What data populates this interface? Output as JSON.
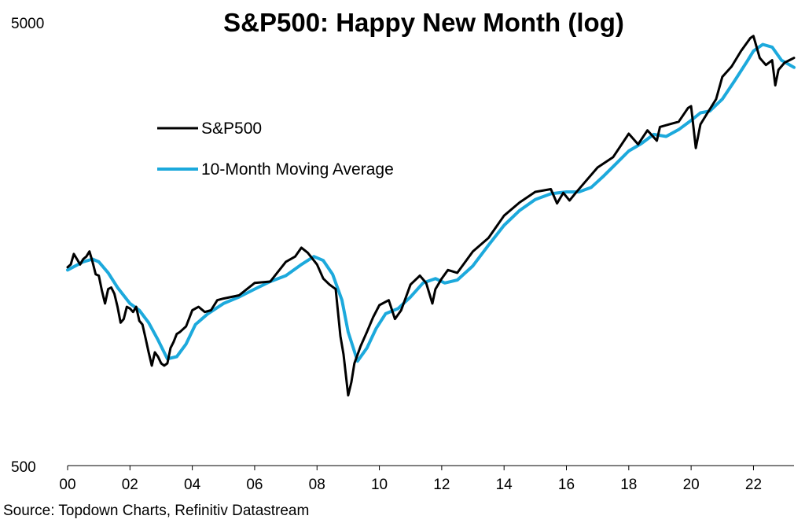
{
  "chart_data": {
    "type": "line",
    "title": "S&P500: Happy New Month (log)",
    "source": "Source: Topdown Charts, Refinitiv Datastream",
    "y_scale": "log",
    "ylim": [
      500,
      5000
    ],
    "y_tick_labels": [
      "5000",
      "500"
    ],
    "xlim": [
      2000.0,
      2023.3
    ],
    "x_ticks": [
      2000,
      2002,
      2004,
      2006,
      2008,
      2010,
      2012,
      2014,
      2016,
      2018,
      2020,
      2022
    ],
    "x_tick_labels": [
      "00",
      "02",
      "04",
      "06",
      "08",
      "10",
      "12",
      "14",
      "16",
      "18",
      "20",
      "22"
    ],
    "grid": false,
    "legend": {
      "position": "upper-left"
    },
    "series": [
      {
        "name": "S&P500",
        "color": "#000000",
        "x": [
          2000.0,
          2000.1,
          2000.2,
          2000.3,
          2000.4,
          2000.5,
          2000.6,
          2000.7,
          2000.8,
          2000.9,
          2001.0,
          2001.1,
          2001.2,
          2001.3,
          2001.4,
          2001.5,
          2001.6,
          2001.7,
          2001.8,
          2001.9,
          2002.0,
          2002.1,
          2002.2,
          2002.3,
          2002.4,
          2002.5,
          2002.6,
          2002.7,
          2002.8,
          2002.9,
          2003.0,
          2003.1,
          2003.2,
          2003.3,
          2003.4,
          2003.5,
          2003.6,
          2003.8,
          2004.0,
          2004.2,
          2004.4,
          2004.6,
          2004.8,
          2005.0,
          2005.5,
          2006.0,
          2006.5,
          2007.0,
          2007.3,
          2007.5,
          2007.7,
          2007.8,
          2008.0,
          2008.2,
          2008.4,
          2008.6,
          2008.75,
          2008.85,
          2009.0,
          2009.1,
          2009.2,
          2009.4,
          2009.6,
          2009.8,
          2010.0,
          2010.3,
          2010.5,
          2010.7,
          2011.0,
          2011.3,
          2011.5,
          2011.7,
          2011.8,
          2012.0,
          2012.2,
          2012.5,
          2013.0,
          2013.5,
          2014.0,
          2014.5,
          2015.0,
          2015.5,
          2015.7,
          2015.9,
          2016.1,
          2016.3,
          2016.6,
          2017.0,
          2017.5,
          2018.0,
          2018.3,
          2018.6,
          2018.9,
          2019.0,
          2019.3,
          2019.6,
          2019.9,
          2020.0,
          2020.15,
          2020.3,
          2020.5,
          2020.8,
          2021.0,
          2021.3,
          2021.6,
          2021.9,
          2022.0,
          2022.2,
          2022.4,
          2022.6,
          2022.7,
          2022.8,
          2023.0,
          2023.3
        ],
        "y": [
          1400,
          1420,
          1500,
          1460,
          1420,
          1460,
          1480,
          1520,
          1440,
          1350,
          1340,
          1240,
          1160,
          1250,
          1260,
          1220,
          1140,
          1050,
          1070,
          1140,
          1130,
          1110,
          1140,
          1060,
          1040,
          970,
          900,
          840,
          900,
          880,
          850,
          840,
          850,
          920,
          950,
          990,
          1000,
          1030,
          1120,
          1140,
          1110,
          1120,
          1180,
          1190,
          1210,
          1290,
          1300,
          1440,
          1480,
          1550,
          1510,
          1480,
          1420,
          1320,
          1280,
          1250,
          980,
          890,
          720,
          770,
          850,
          930,
          1000,
          1080,
          1150,
          1180,
          1070,
          1120,
          1280,
          1340,
          1290,
          1160,
          1250,
          1320,
          1380,
          1360,
          1520,
          1630,
          1830,
          1960,
          2070,
          2100,
          1950,
          2060,
          1980,
          2060,
          2180,
          2350,
          2480,
          2800,
          2650,
          2850,
          2700,
          2900,
          2940,
          2980,
          3200,
          3230,
          2600,
          2940,
          3100,
          3350,
          3760,
          3970,
          4300,
          4600,
          4650,
          4150,
          4000,
          4100,
          3600,
          3900,
          4050,
          4150
        ]
      },
      {
        "name": "10-Month Moving Average",
        "color": "#1ca9dc",
        "x": [
          2000.0,
          2000.5,
          2000.8,
          2001.0,
          2001.3,
          2001.6,
          2002.0,
          2002.3,
          2002.6,
          2002.9,
          2003.2,
          2003.5,
          2003.8,
          2004.1,
          2004.5,
          2005.0,
          2005.5,
          2006.0,
          2006.5,
          2007.0,
          2007.5,
          2007.9,
          2008.2,
          2008.5,
          2008.8,
          2009.0,
          2009.3,
          2009.6,
          2009.9,
          2010.2,
          2010.6,
          2011.0,
          2011.4,
          2011.8,
          2012.1,
          2012.5,
          2013.0,
          2013.5,
          2014.0,
          2014.5,
          2015.0,
          2015.5,
          2016.0,
          2016.4,
          2016.8,
          2017.2,
          2017.6,
          2018.0,
          2018.4,
          2018.8,
          2019.2,
          2019.6,
          2020.0,
          2020.3,
          2020.6,
          2021.0,
          2021.4,
          2021.8,
          2022.0,
          2022.3,
          2022.6,
          2022.9,
          2023.3
        ],
        "y": [
          1380,
          1440,
          1460,
          1440,
          1360,
          1260,
          1160,
          1120,
          1050,
          960,
          870,
          880,
          940,
          1040,
          1100,
          1160,
          1200,
          1250,
          1300,
          1340,
          1420,
          1480,
          1450,
          1350,
          1180,
          1000,
          860,
          920,
          1020,
          1100,
          1130,
          1200,
          1290,
          1320,
          1290,
          1310,
          1410,
          1570,
          1740,
          1880,
          1990,
          2050,
          2070,
          2070,
          2120,
          2250,
          2400,
          2560,
          2660,
          2790,
          2760,
          2860,
          3000,
          3120,
          3150,
          3350,
          3690,
          4080,
          4300,
          4450,
          4390,
          4100,
          3950
        ]
      }
    ]
  }
}
